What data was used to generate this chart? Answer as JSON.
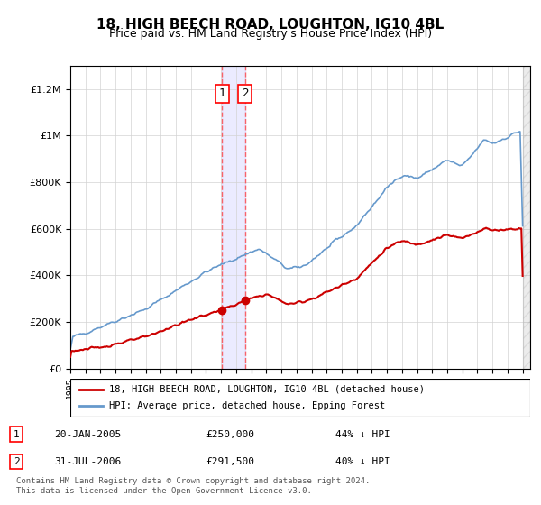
{
  "title": "18, HIGH BEECH ROAD, LOUGHTON, IG10 4BL",
  "subtitle": "Price paid vs. HM Land Registry's House Price Index (HPI)",
  "hpi_label": "HPI: Average price, detached house, Epping Forest",
  "property_label": "18, HIGH BEECH ROAD, LOUGHTON, IG10 4BL (detached house)",
  "hpi_color": "#6699cc",
  "property_color": "#cc0000",
  "transaction_color": "#cc0000",
  "marker_color": "#cc0000",
  "vline_color": "#ff4444",
  "transactions": [
    {
      "id": 1,
      "date_num": 2005.05,
      "price": 250000,
      "label": "20-JAN-2005",
      "pct": "44%"
    },
    {
      "id": 2,
      "date_num": 2006.58,
      "price": 291500,
      "label": "31-JUL-2006",
      "pct": "40%"
    }
  ],
  "footer": "Contains HM Land Registry data © Crown copyright and database right 2024.\nThis data is licensed under the Open Government Licence v3.0.",
  "ylim": [
    0,
    1300000
  ],
  "xlim": [
    1995,
    2025.5
  ]
}
